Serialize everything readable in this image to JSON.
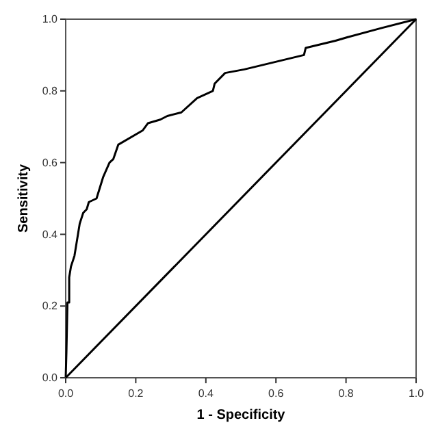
{
  "chart_data": {
    "type": "line",
    "xlabel": "1 - Specificity",
    "ylabel": "Sensitivity",
    "xlim": [
      0,
      1
    ],
    "ylim": [
      0,
      1
    ],
    "xticks": [
      {
        "value": 0,
        "label": "0.0"
      },
      {
        "value": 0.2,
        "label": "0.2"
      },
      {
        "value": 0.4,
        "label": "0.4"
      },
      {
        "value": 0.6,
        "label": "0.6"
      },
      {
        "value": 0.8,
        "label": "0.8"
      },
      {
        "value": 1,
        "label": "1.0"
      }
    ],
    "yticks": [
      {
        "value": 0,
        "label": "0.0"
      },
      {
        "value": 0.2,
        "label": "0.2"
      },
      {
        "value": 0.4,
        "label": "0.4"
      },
      {
        "value": 0.6,
        "label": "0.6"
      },
      {
        "value": 0.8,
        "label": "0.8"
      },
      {
        "value": 1,
        "label": "1.0"
      }
    ],
    "series": [
      {
        "color": "#000000",
        "x": [
          0,
          0.002,
          0.005,
          0.01,
          0.01,
          0.015,
          0.025,
          0.03,
          0.035,
          0.04,
          0.05,
          0.06,
          0.066,
          0.088,
          0.107,
          0.125,
          0.136,
          0.15,
          0.22,
          0.235,
          0.27,
          0.29,
          0.33,
          0.375,
          0.42,
          0.425,
          0.455,
          0.51,
          0.68,
          0.685,
          0.77,
          0.805,
          0.9,
          1
        ],
        "values": [
          0,
          0.07,
          0.21,
          0.21,
          0.28,
          0.31,
          0.34,
          0.37,
          0.4,
          0.43,
          0.46,
          0.47,
          0.49,
          0.5,
          0.56,
          0.6,
          0.61,
          0.65,
          0.69,
          0.71,
          0.72,
          0.73,
          0.74,
          0.78,
          0.8,
          0.82,
          0.85,
          0.86,
          0.9,
          0.92,
          0.94,
          0.95,
          0.975,
          1
        ]
      },
      {
        "color": "#000000",
        "x": [
          0,
          1
        ],
        "values": [
          0,
          1
        ]
      }
    ],
    "grid": false,
    "marker": "none",
    "line_style": "solid"
  }
}
